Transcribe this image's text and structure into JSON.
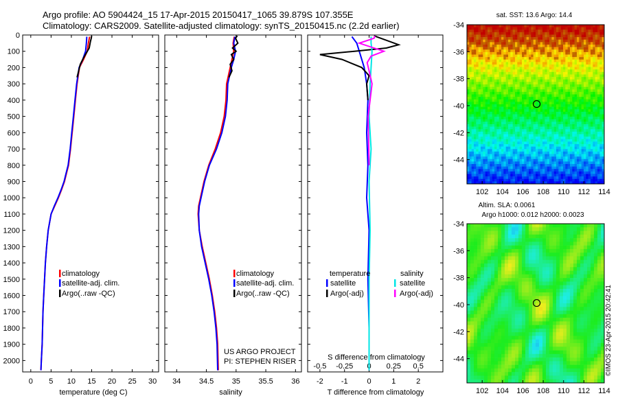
{
  "header": {
    "line1": "Argo profile: AO 5904424_15 17-Apr-2015 20150417_1065 39.879S 107.355E",
    "line2": "Climatology: CARS2009. Satellite-adjusted climatology: synTS_20150415.nc (2.2d earlier)"
  },
  "colors": {
    "climatology": "#ff0000",
    "satellite_adj": "#0000ff",
    "argo": "#000000",
    "temp_satellite": "#0000ff",
    "temp_argo": "#000000",
    "sal_satellite": "#00e5e5",
    "sal_argo": "#ff00ff"
  },
  "depth_axis": {
    "ticks": [
      0,
      100,
      200,
      300,
      400,
      500,
      600,
      700,
      800,
      900,
      1000,
      1100,
      1200,
      1300,
      1400,
      1500,
      1600,
      1700,
      1800,
      1900,
      2000
    ],
    "ylim": [
      0,
      2070
    ]
  },
  "chart_data": [
    {
      "id": "temperature",
      "type": "line",
      "xlabel": "temperature (deg C)",
      "xlim": [
        -2,
        31.5
      ],
      "xticks": [
        0,
        5,
        10,
        15,
        20,
        25,
        30
      ],
      "legend": [
        "climatology",
        "satellite-adj. clim.",
        "Argo(..raw -QC)"
      ],
      "series": [
        {
          "name": "climatology",
          "color": "#ff0000",
          "x": [
            14.5,
            14.2,
            13.9,
            13.0,
            12.0,
            11.4,
            11.0,
            10.6,
            10.2,
            9.8,
            9.3,
            8.8,
            8.3,
            7.6,
            6.8,
            5.9,
            5.0,
            4.3,
            3.9,
            3.6,
            3.4,
            3.2,
            3.0,
            2.9,
            2.8,
            2.7,
            2.6,
            2.5
          ],
          "y": [
            10,
            50,
            100,
            150,
            200,
            300,
            400,
            500,
            600,
            700,
            800,
            850,
            900,
            950,
            1000,
            1050,
            1100,
            1200,
            1300,
            1400,
            1500,
            1600,
            1700,
            1800,
            1900,
            1950,
            2000,
            2060
          ]
        },
        {
          "name": "satellite-adj. clim.",
          "color": "#0000ff",
          "x": [
            13.8,
            13.7,
            13.5,
            12.8,
            11.9,
            11.3,
            10.9,
            10.5,
            10.1,
            9.7,
            9.2,
            8.7,
            8.2,
            7.5,
            6.7,
            5.8,
            5.0,
            4.3,
            3.9,
            3.6,
            3.4,
            3.2,
            3.0,
            2.9,
            2.8,
            2.7,
            2.6,
            2.5
          ],
          "y": [
            10,
            50,
            100,
            150,
            200,
            300,
            400,
            500,
            600,
            700,
            800,
            850,
            900,
            950,
            1000,
            1050,
            1100,
            1200,
            1300,
            1400,
            1500,
            1600,
            1700,
            1800,
            1900,
            1950,
            2000,
            2060
          ]
        },
        {
          "name": "Argo(..raw -QC)",
          "color": "#000000",
          "x": [
            15.0,
            14.9,
            14.7,
            14.4,
            13.0,
            12.2,
            11.8,
            11.4
          ],
          "y": [
            5,
            20,
            40,
            80,
            140,
            180,
            220,
            260
          ]
        }
      ]
    },
    {
      "id": "salinity",
      "type": "line",
      "xlabel": "salinity",
      "xlim": [
        33.8,
        36.1
      ],
      "xticks": [
        34,
        34.5,
        35,
        35.5,
        36
      ],
      "xticklabels": [
        "34",
        "34.5",
        "35",
        "35.5",
        "36"
      ],
      "legend": [
        "climatology",
        "satellite-adj. clim.",
        "Argo(..raw -QC)"
      ],
      "series": [
        {
          "name": "climatology",
          "color": "#ff0000",
          "x": [
            34.97,
            34.95,
            34.96,
            34.93,
            34.9,
            34.84,
            34.83,
            34.8,
            34.74,
            34.65,
            34.54,
            34.46,
            34.4,
            34.37,
            34.36,
            34.38,
            34.43,
            34.49,
            34.55,
            34.6,
            34.64,
            34.67,
            34.69,
            34.7
          ],
          "y": [
            10,
            50,
            100,
            150,
            200,
            300,
            400,
            500,
            600,
            700,
            800,
            900,
            1000,
            1050,
            1100,
            1200,
            1300,
            1400,
            1500,
            1600,
            1700,
            1800,
            1900,
            2060
          ]
        },
        {
          "name": "satellite-adj. clim.",
          "color": "#0000ff",
          "x": [
            34.98,
            34.96,
            34.99,
            34.96,
            34.92,
            34.86,
            34.85,
            34.82,
            34.76,
            34.67,
            34.55,
            34.47,
            34.41,
            34.38,
            34.37,
            34.38,
            34.42,
            34.48,
            34.54,
            34.59,
            34.63,
            34.66,
            34.68,
            34.69
          ],
          "y": [
            10,
            50,
            100,
            150,
            200,
            300,
            400,
            500,
            600,
            700,
            800,
            900,
            1000,
            1050,
            1100,
            1200,
            1300,
            1400,
            1500,
            1600,
            1700,
            1800,
            1900,
            2060
          ]
        },
        {
          "name": "Argo(..raw -QC)",
          "color": "#000000",
          "x": [
            35.02,
            34.99,
            35.03,
            34.94,
            35.0,
            34.92,
            34.96,
            34.9,
            34.93,
            34.88
          ],
          "y": [
            5,
            20,
            50,
            80,
            100,
            120,
            150,
            180,
            220,
            260
          ]
        }
      ]
    },
    {
      "id": "difference",
      "type": "line",
      "xlabel": "T difference from climatology",
      "xlabel_top": "S difference from climatology",
      "xlim": [
        -2.5,
        3
      ],
      "xticks": [
        -2,
        -1,
        0,
        1,
        2
      ],
      "xticklabels": [
        "-2",
        "-1",
        "0",
        "1",
        "2"
      ],
      "sticks": [
        -0.5,
        -0.25,
        0,
        0.25,
        0.5
      ],
      "sticklabels": [
        "-0.5",
        "-0.25",
        "0",
        "0.25",
        "0.5"
      ],
      "legend_temperature": {
        "title": "temperature",
        "items": [
          "satellite",
          "Argo(-adj)"
        ]
      },
      "legend_salinity": {
        "title": "salinity",
        "items": [
          "satellite",
          "Argo(-adj)"
        ]
      },
      "series": [
        {
          "name": "temperature satellite",
          "color": "#0000ff",
          "x": [
            -0.7,
            -0.5,
            -0.4,
            -0.2,
            -0.1,
            -0.05,
            -0.1,
            -0.05,
            -0.1,
            0.0,
            -0.05,
            0.0,
            0.0
          ],
          "y": [
            10,
            50,
            100,
            200,
            300,
            400,
            600,
            800,
            1000,
            1200,
            1500,
            1800,
            2060
          ]
        },
        {
          "name": "temperature Argo(-adj)",
          "color": "#000000",
          "x": [
            0.2,
            1.2,
            0.7,
            -0.6,
            -2.0,
            -1.1,
            -0.3,
            0.0,
            -0.1,
            -0.05
          ],
          "y": [
            5,
            60,
            80,
            100,
            120,
            150,
            200,
            250,
            300,
            400
          ]
        },
        {
          "name": "salinity satellite",
          "color": "#00e5e5",
          "x": [
            0.02,
            0.02,
            0.03,
            0.02,
            0.01,
            0.0,
            0.02,
            0.0,
            0.01,
            0.0,
            0.0,
            0.0
          ],
          "y": [
            10,
            50,
            100,
            200,
            300,
            500,
            700,
            900,
            1200,
            1500,
            1800,
            2060
          ]
        },
        {
          "name": "salinity Argo(-adj)",
          "color": "#ff00ff",
          "x": [
            0.06,
            0.05,
            -0.1,
            0.15,
            0.02,
            -0.02,
            0.0,
            0.03,
            -0.01,
            0.0
          ],
          "y": [
            5,
            20,
            50,
            100,
            130,
            170,
            220,
            300,
            500,
            800
          ]
        }
      ]
    },
    {
      "id": "sst-map",
      "type": "heatmap",
      "title": "sat. SST: 13.6 Argo: 14.4",
      "xlim": [
        100.5,
        114
      ],
      "ylim": [
        -45.8,
        -34
      ],
      "xticks": [
        102,
        104,
        106,
        108,
        110,
        112,
        114
      ],
      "yticks": [
        -44,
        -42,
        -40,
        -38,
        -36,
        -34
      ],
      "marker": {
        "lon": 107.355,
        "lat": -39.879
      }
    },
    {
      "id": "sla-map",
      "type": "heatmap",
      "title": "Altim. SLA: 0.0061",
      "subtitle": "Argo h1000: 0.012 h2000: 0.0023",
      "xlim": [
        100.5,
        114
      ],
      "ylim": [
        -45.8,
        -34
      ],
      "xticks": [
        102,
        104,
        106,
        108,
        110,
        112,
        114
      ],
      "yticks": [
        -44,
        -42,
        -40,
        -38,
        -36,
        -34
      ],
      "marker": {
        "lon": 107.355,
        "lat": -39.879
      }
    }
  ],
  "annotations": {
    "project_line1": "US ARGO PROJECT",
    "project_line2": "PI: STEPHEN RISER",
    "credit": "©IMOS 23-Apr-2015 20:42:41"
  }
}
